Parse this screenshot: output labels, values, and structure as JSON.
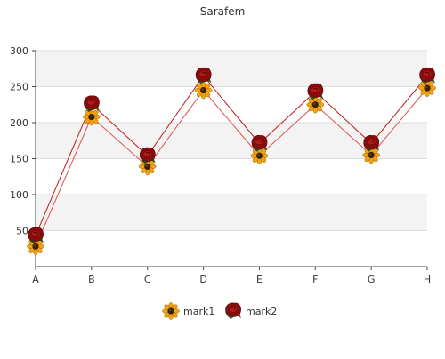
{
  "chart_data": {
    "type": "line",
    "title": "Sarafem",
    "xlabel": "",
    "ylabel": "",
    "categories": [
      "A",
      "B",
      "C",
      "D",
      "E",
      "F",
      "G",
      "H"
    ],
    "series": [
      {
        "name": "mark1",
        "values": [
          28,
          208,
          139,
          245,
          154,
          225,
          155,
          248
        ],
        "color": "#e05050",
        "marker": "sunflower"
      },
      {
        "name": "mark2",
        "values": [
          43,
          226,
          154,
          265,
          171,
          243,
          171,
          265
        ],
        "color": "#c01818",
        "marker": "rose"
      }
    ],
    "ylim": [
      0,
      300
    ],
    "yticks": [
      50,
      100,
      150,
      200,
      250,
      300
    ],
    "grid": true,
    "legend_position": "bottom"
  }
}
